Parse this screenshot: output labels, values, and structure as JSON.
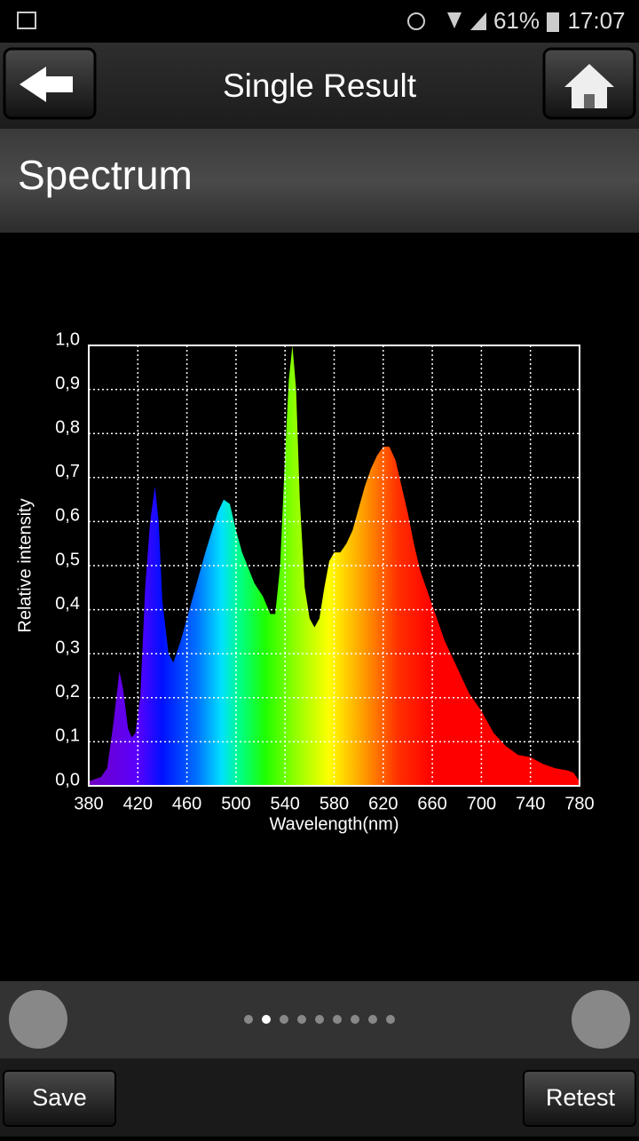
{
  "status_bar": {
    "battery": "61%",
    "time": "17:07"
  },
  "header": {
    "title": "Single Result"
  },
  "section": {
    "title": "Spectrum"
  },
  "chart_data": {
    "type": "area",
    "xlabel": "Wavelength(nm)",
    "ylabel": "Relative intensity",
    "x": [
      380,
      385,
      390,
      395,
      400,
      405,
      408,
      412,
      415,
      418,
      422,
      426,
      430,
      434,
      437,
      440,
      445,
      449,
      455,
      465,
      475,
      485,
      490,
      495,
      500,
      505,
      515,
      522,
      528,
      532,
      536,
      540,
      543,
      546,
      549,
      552,
      556,
      560,
      564,
      568,
      572,
      576,
      580,
      585,
      590,
      595,
      600,
      605,
      610,
      615,
      620,
      625,
      630,
      635,
      640,
      645,
      650,
      655,
      660,
      670,
      680,
      690,
      700,
      710,
      720,
      730,
      740,
      750,
      760,
      770,
      775,
      780
    ],
    "values": [
      0.01,
      0.015,
      0.02,
      0.04,
      0.14,
      0.26,
      0.22,
      0.13,
      0.11,
      0.12,
      0.2,
      0.45,
      0.6,
      0.68,
      0.6,
      0.42,
      0.3,
      0.28,
      0.33,
      0.43,
      0.53,
      0.62,
      0.65,
      0.64,
      0.58,
      0.53,
      0.46,
      0.43,
      0.39,
      0.39,
      0.5,
      0.75,
      0.92,
      1.0,
      0.9,
      0.65,
      0.45,
      0.38,
      0.36,
      0.38,
      0.45,
      0.51,
      0.53,
      0.53,
      0.55,
      0.58,
      0.63,
      0.68,
      0.72,
      0.75,
      0.77,
      0.77,
      0.74,
      0.68,
      0.62,
      0.55,
      0.49,
      0.45,
      0.41,
      0.33,
      0.27,
      0.21,
      0.17,
      0.12,
      0.09,
      0.07,
      0.065,
      0.05,
      0.04,
      0.035,
      0.03,
      0.01
    ],
    "xlim": [
      380,
      780
    ],
    "xticks": [
      380,
      420,
      460,
      500,
      540,
      580,
      620,
      660,
      700,
      740,
      780
    ],
    "ylim": [
      0,
      1.0
    ],
    "yticks": [
      {
        "value": 0,
        "label": "0,0"
      },
      {
        "value": 0.1,
        "label": "0,1"
      },
      {
        "value": 0.2,
        "label": "0,2"
      },
      {
        "value": 0.3,
        "label": "0,3"
      },
      {
        "value": 0.4,
        "label": "0,4"
      },
      {
        "value": 0.5,
        "label": "0,5"
      },
      {
        "value": 0.6,
        "label": "0,6"
      },
      {
        "value": 0.7,
        "label": "0,7"
      },
      {
        "value": 0.8,
        "label": "0,8"
      },
      {
        "value": 0.9,
        "label": "0,9"
      },
      {
        "value": 1.0,
        "label": "1,0"
      }
    ],
    "grid": true
  },
  "buttons": {
    "save": "Save",
    "retest": "Retest"
  }
}
